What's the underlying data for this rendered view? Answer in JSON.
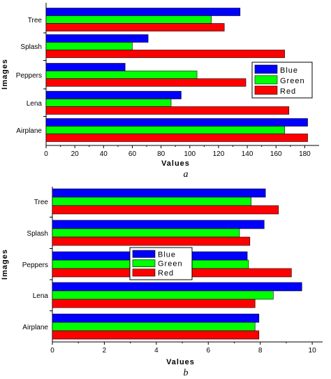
{
  "chart_data": [
    {
      "type": "bar",
      "orientation": "horizontal",
      "caption": "a",
      "xlabel": "Values",
      "ylabel": "Images",
      "categories": [
        "Airplane",
        "Lena",
        "Peppers",
        "Splash",
        "Tree"
      ],
      "xlim": [
        0,
        190
      ],
      "xticks": [
        0,
        20,
        40,
        60,
        80,
        100,
        120,
        140,
        160,
        180
      ],
      "legend_position": "right",
      "series": [
        {
          "name": "Blue",
          "color": "#0000ff",
          "values": [
            182,
            94,
            55,
            71,
            135
          ]
        },
        {
          "name": "Green",
          "color": "#00ff00",
          "values": [
            166,
            87,
            105,
            60,
            115
          ]
        },
        {
          "name": "Red",
          "color": "#ff0000",
          "values": [
            182,
            169,
            139,
            166,
            124
          ]
        }
      ]
    },
    {
      "type": "bar",
      "orientation": "horizontal",
      "caption": "b",
      "xlabel": "Values",
      "ylabel": "Images",
      "categories": [
        "Airplane",
        "Lena",
        "Peppers",
        "Splash",
        "Tree"
      ],
      "xlim": [
        0,
        10.4
      ],
      "xticks": [
        0,
        2,
        4,
        6,
        8,
        10
      ],
      "legend_position": "center",
      "series": [
        {
          "name": "Blue",
          "color": "#0000ff",
          "values": [
            7.95,
            9.6,
            7.5,
            8.15,
            8.2
          ]
        },
        {
          "name": "Green",
          "color": "#00ff00",
          "values": [
            7.8,
            8.5,
            7.55,
            7.2,
            7.65
          ]
        },
        {
          "name": "Red",
          "color": "#ff0000",
          "values": [
            7.95,
            7.8,
            9.2,
            7.6,
            8.7
          ]
        }
      ]
    }
  ]
}
